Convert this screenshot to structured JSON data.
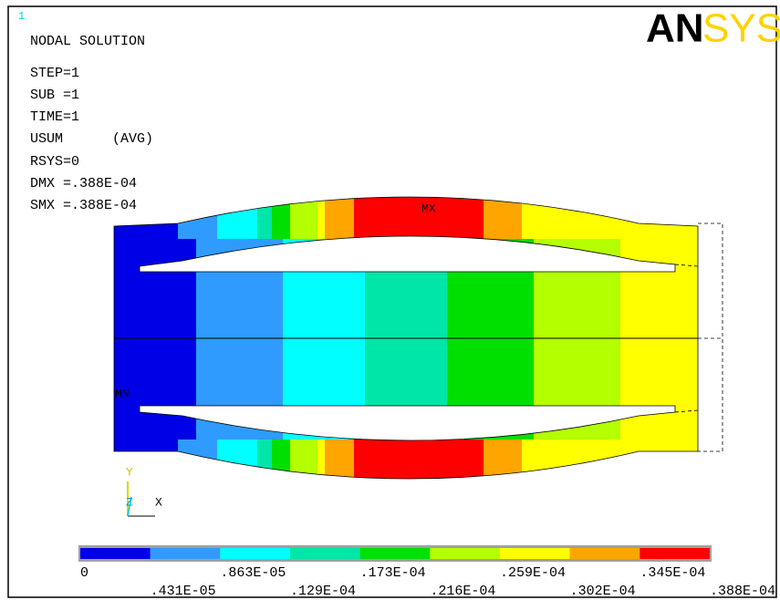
{
  "window_number": "1",
  "logo": {
    "parts": [
      "AN",
      "SYS"
    ]
  },
  "info": [
    "NODAL SOLUTION",
    "STEP=1",
    "SUB =1",
    "TIME=1",
    "USUM      (AVG)",
    "RSYS=0",
    "DMX =.388E-04",
    "SMX =.388E-04"
  ],
  "markers": {
    "max": "MX",
    "min": "MN"
  },
  "triad": {
    "y": "Y",
    "z": "Z",
    "x": "X"
  },
  "legend": {
    "colors": [
      "#0000e6",
      "#2f9bff",
      "#00ffff",
      "#00e6a8",
      "#00e000",
      "#b4ff00",
      "#ffff00",
      "#ffa500",
      "#ff0000"
    ],
    "labels": [
      "0",
      ".431E-05",
      ".863E-05",
      ".129E-04",
      ".173E-04",
      ".216E-04",
      ".259E-04",
      ".302E-04",
      ".345E-04",
      ".388E-04"
    ]
  }
}
